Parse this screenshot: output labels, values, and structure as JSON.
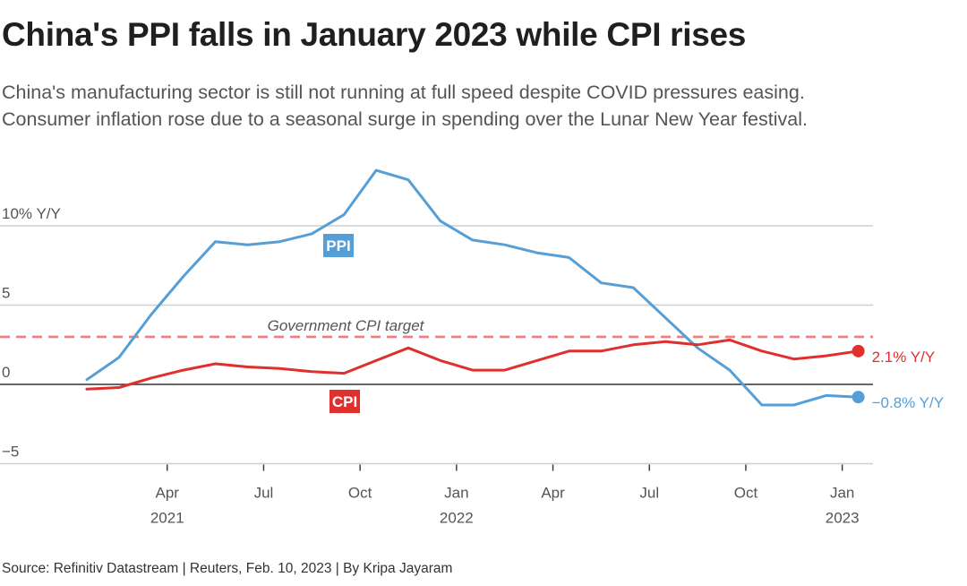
{
  "header": {
    "title": "China's PPI falls in January 2023 while CPI rises",
    "subtitle_lines": [
      "China's manufacturing sector is still not running at full speed despite COVID pressures easing.",
      "Consumer inflation rose due to a seasonal surge in spending over the Lunar New Year festival."
    ]
  },
  "footer": {
    "source": "Source: Refinitiv Datastream | Reuters, Feb. 10, 2023 | By Kripa Jayaram"
  },
  "chart_data": {
    "type": "line",
    "title": "China's PPI falls in January 2023 while CPI rises",
    "xlabel": "",
    "ylabel": "% Y/Y",
    "ylim": [
      -6.5,
      14
    ],
    "grid": true,
    "yticks": [
      {
        "value": 10,
        "label": "10% Y/Y"
      },
      {
        "value": 5,
        "label": "5"
      },
      {
        "value": 0,
        "label": "0"
      },
      {
        "value": -5,
        "label": "−5"
      }
    ],
    "xticks": [
      {
        "month_index": 2.5,
        "label": "Apr",
        "year": "2021"
      },
      {
        "month_index": 5.5,
        "label": "Jul",
        "year": ""
      },
      {
        "month_index": 8.5,
        "label": "Oct",
        "year": ""
      },
      {
        "month_index": 11.5,
        "label": "Jan",
        "year": "2022"
      },
      {
        "month_index": 14.5,
        "label": "Apr",
        "year": ""
      },
      {
        "month_index": 17.5,
        "label": "Jul",
        "year": ""
      },
      {
        "month_index": 20.5,
        "label": "Oct",
        "year": ""
      },
      {
        "month_index": 23.5,
        "label": "Jan",
        "year": "2023"
      }
    ],
    "x": [
      "2021-01",
      "2021-02",
      "2021-03",
      "2021-04",
      "2021-05",
      "2021-06",
      "2021-07",
      "2021-08",
      "2021-09",
      "2021-10",
      "2021-11",
      "2021-12",
      "2022-01",
      "2022-02",
      "2022-03",
      "2022-04",
      "2022-05",
      "2022-06",
      "2022-07",
      "2022-08",
      "2022-09",
      "2022-10",
      "2022-11",
      "2022-12",
      "2023-01"
    ],
    "series": [
      {
        "name": "PPI",
        "color": "#559fd6",
        "values": [
          0.3,
          1.7,
          4.4,
          6.8,
          9.0,
          8.8,
          9.0,
          9.5,
          10.7,
          13.5,
          12.9,
          10.3,
          9.1,
          8.8,
          8.3,
          8.0,
          6.4,
          6.1,
          4.2,
          2.3,
          0.9,
          -1.3,
          -1.3,
          -0.7,
          -0.8
        ],
        "tag": "PPI",
        "end_label": "−0.8% Y/Y"
      },
      {
        "name": "CPI",
        "color": "#e0302d",
        "values": [
          -0.3,
          -0.2,
          0.4,
          0.9,
          1.3,
          1.1,
          1.0,
          0.8,
          0.7,
          1.5,
          2.3,
          1.5,
          0.9,
          0.9,
          1.5,
          2.1,
          2.1,
          2.5,
          2.7,
          2.5,
          2.8,
          2.1,
          1.6,
          1.8,
          2.1
        ],
        "tag": "CPI",
        "end_label": "2.1% Y/Y"
      }
    ],
    "reference_line": {
      "name": "Government CPI target",
      "value": 3,
      "color": "#ee7f7d",
      "style": "dashed"
    }
  }
}
